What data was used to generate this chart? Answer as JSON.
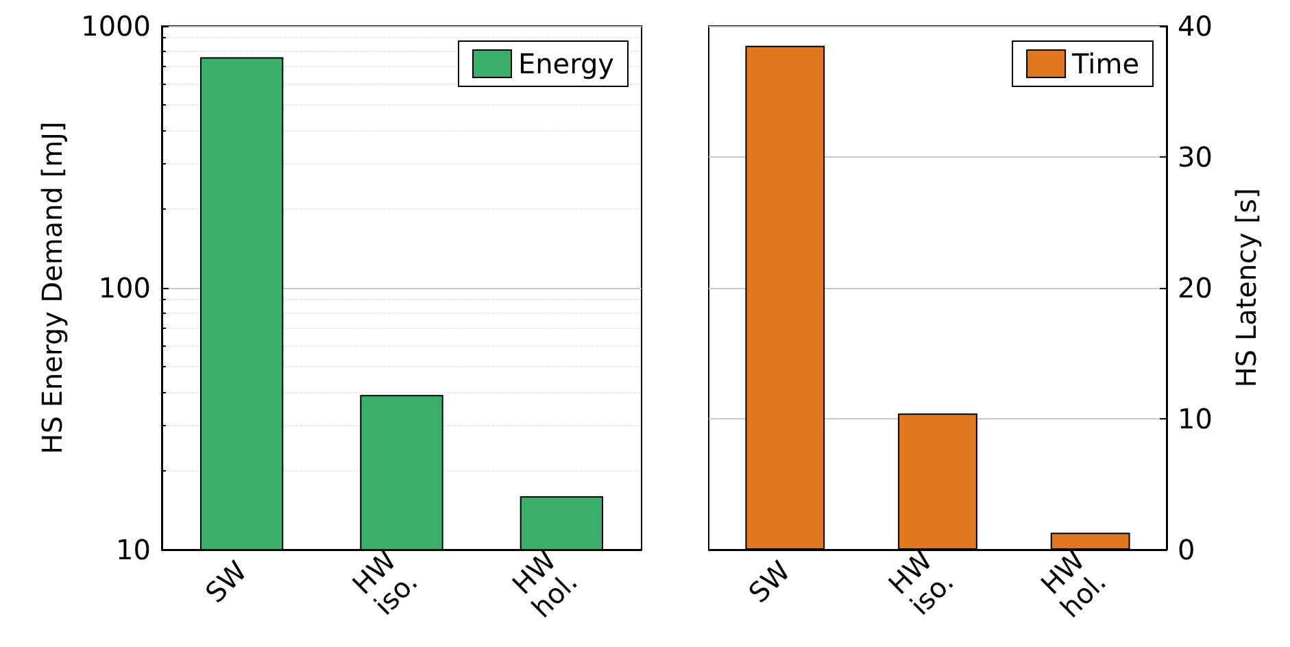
{
  "chart_data": [
    {
      "type": "bar",
      "ylabel": "HS Energy Demand [mJ]",
      "categories": [
        "SW",
        "HW iso.",
        "HW hol."
      ],
      "log": true,
      "ylim": [
        10,
        1000
      ],
      "yticks": [
        10,
        100,
        1000
      ],
      "grid": "y",
      "legend": "top right",
      "series": [
        {
          "name": "Energy",
          "color": "#3aaf6a",
          "values": [
            760,
            39,
            16
          ]
        }
      ]
    },
    {
      "type": "bar",
      "y2label": "HS Latency [s]",
      "categories": [
        "SW",
        "HW iso.",
        "HW hol."
      ],
      "y2lim": [
        0,
        40
      ],
      "y2ticks": [
        0,
        10,
        20,
        30,
        40
      ],
      "grid": "y",
      "legend": "top right",
      "series": [
        {
          "name": "Time",
          "color": "#e2781e",
          "values": [
            38.5,
            10.4,
            1.3
          ],
          "axis": "y2"
        }
      ]
    }
  ]
}
